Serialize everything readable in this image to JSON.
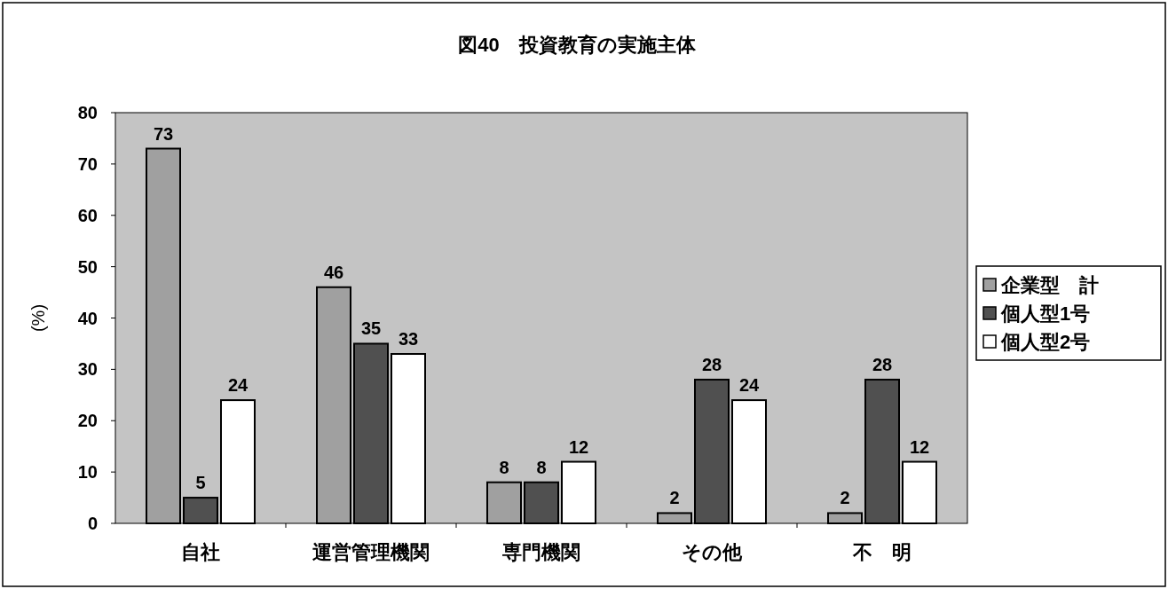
{
  "chart_data": {
    "type": "bar",
    "title": "図40　投資教育の実施主体",
    "ylabel": "(%)",
    "categories": [
      "自社",
      "運営管理機関",
      "専門機関",
      "その他",
      "不　明"
    ],
    "series": [
      {
        "name": "企業型　計",
        "color": "#a0a0a0",
        "values": [
          73,
          46,
          8,
          2,
          2
        ]
      },
      {
        "name": "個人型1号",
        "color": "#505050",
        "values": [
          5,
          35,
          8,
          28,
          28
        ]
      },
      {
        "name": "個人型2号",
        "color": "#ffffff",
        "values": [
          24,
          33,
          12,
          24,
          12
        ]
      }
    ],
    "ylim": [
      0,
      80
    ],
    "yticks": [
      0,
      10,
      20,
      30,
      40,
      50,
      60,
      70,
      80
    ],
    "data_labels": true,
    "legend": "right",
    "grid": false
  }
}
